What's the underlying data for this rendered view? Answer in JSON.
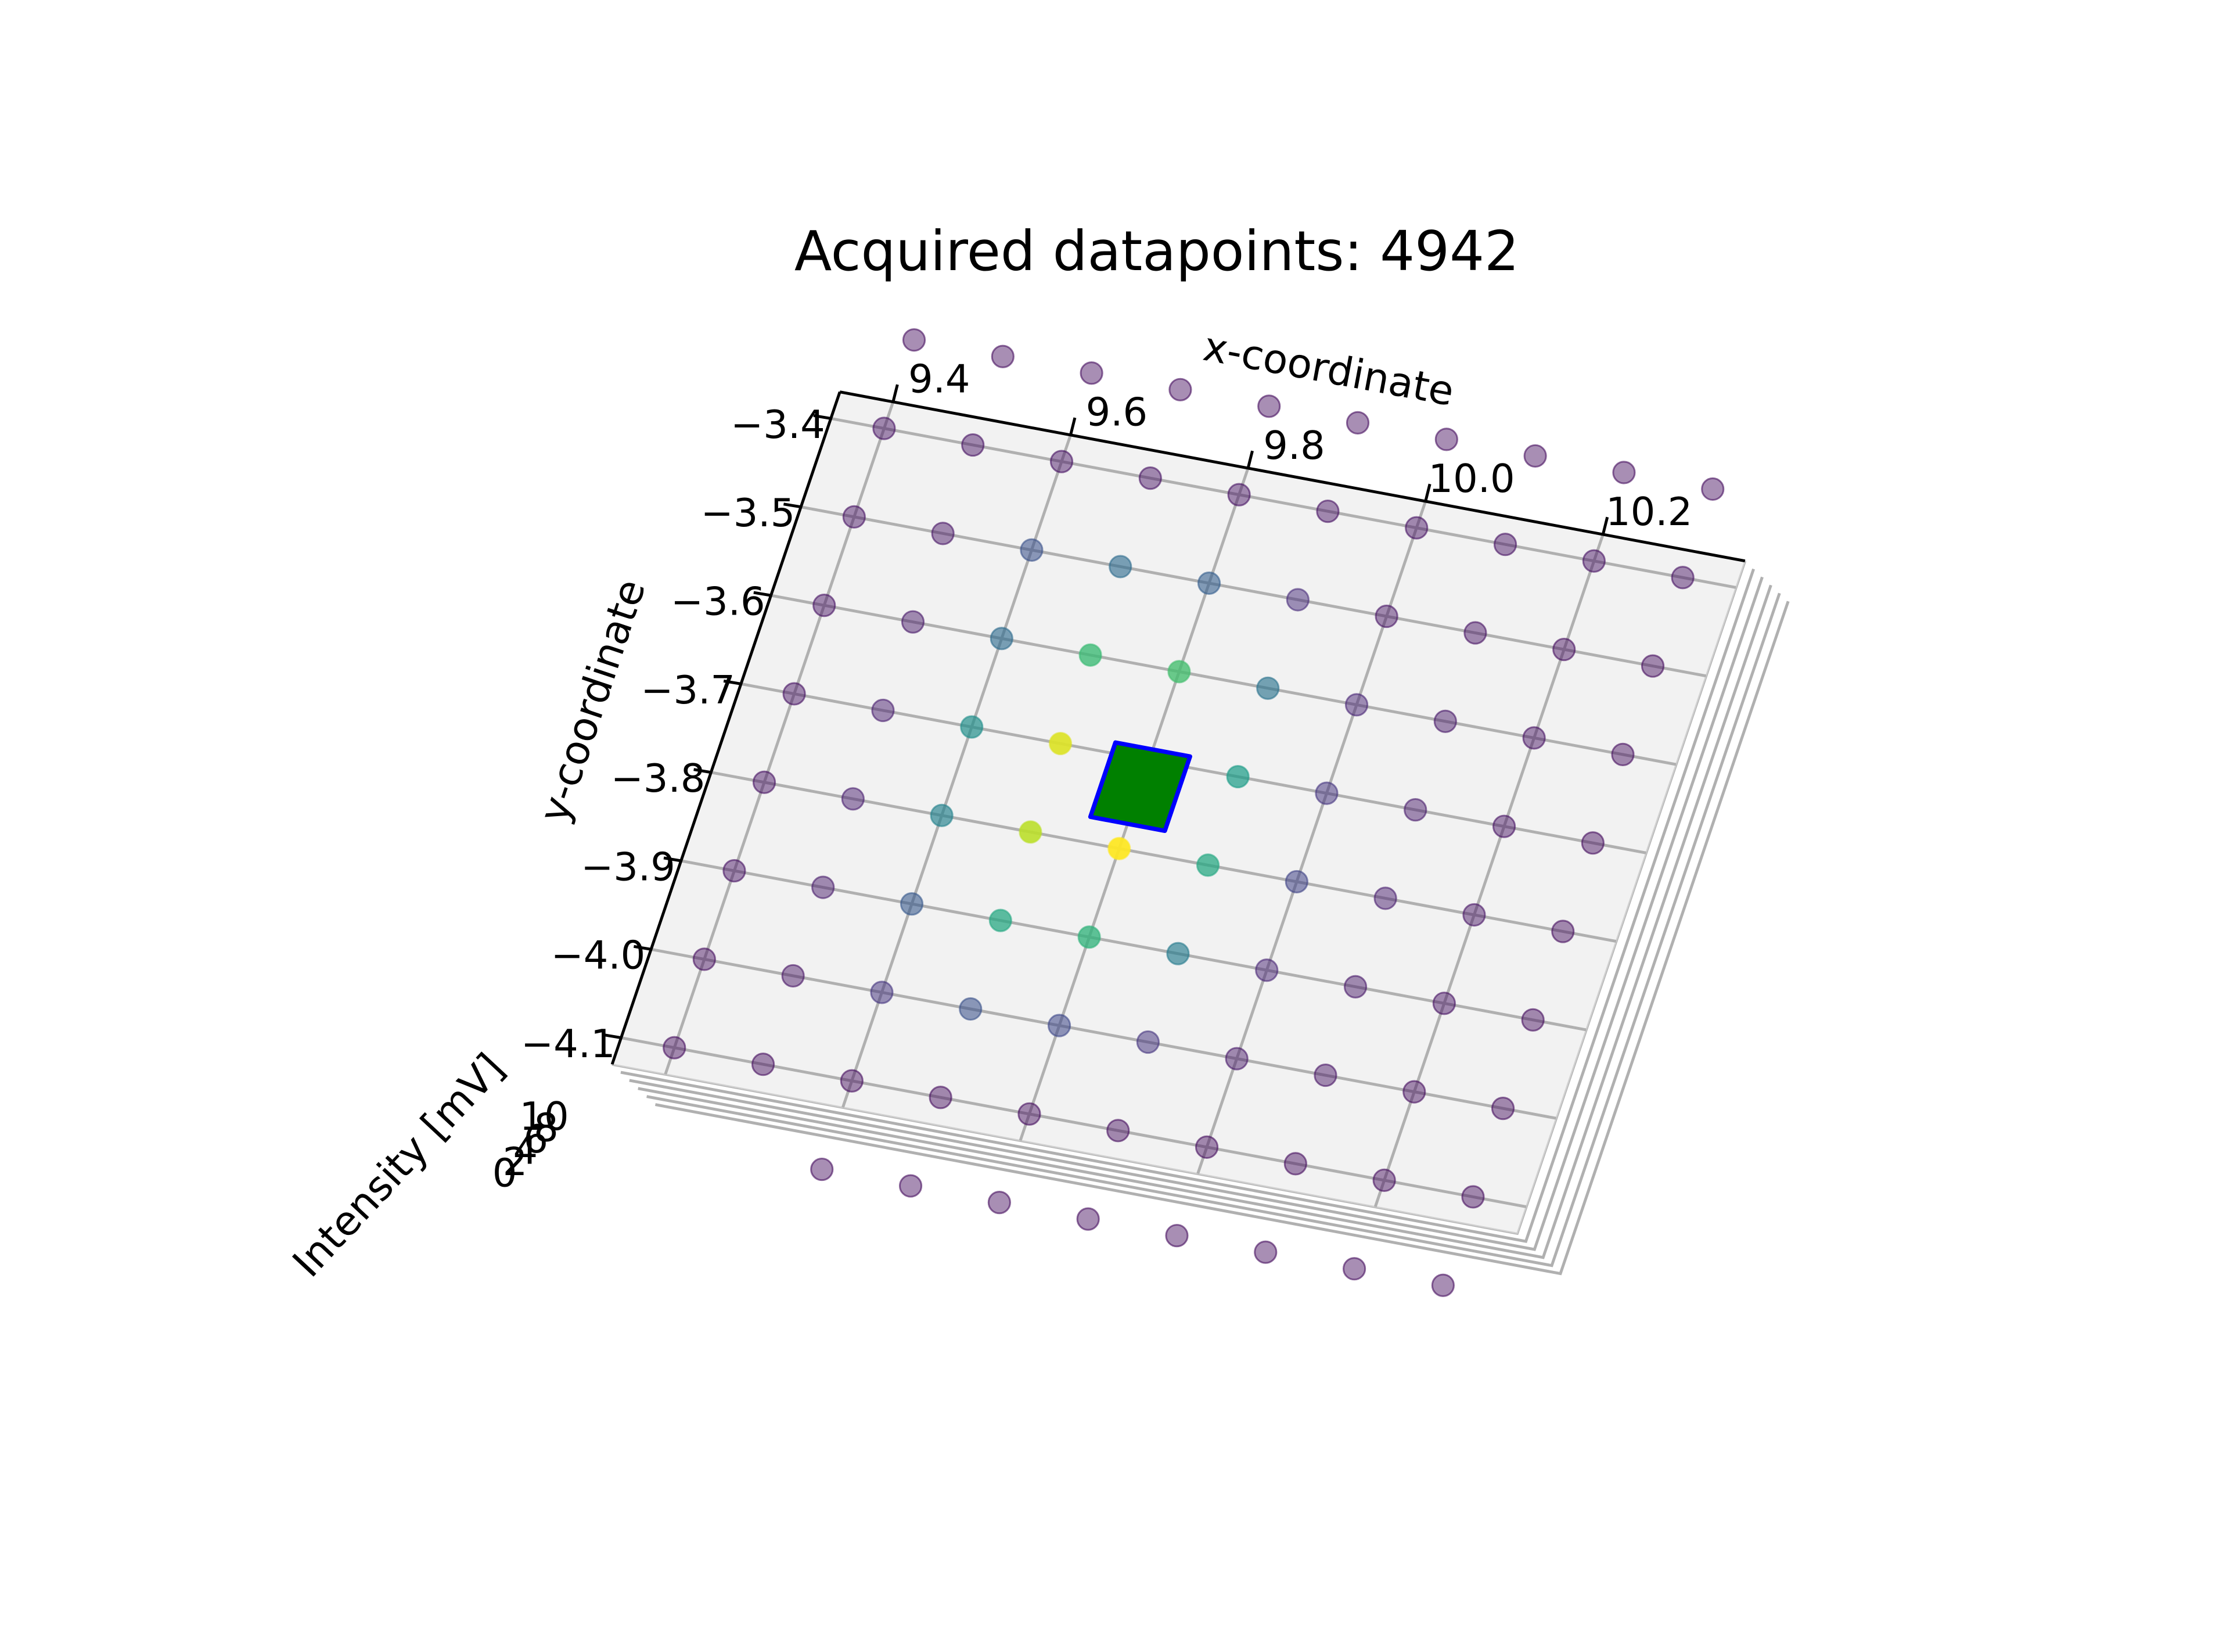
{
  "chart_data": {
    "type": "scatter3d",
    "title": "Acquired datapoints: 4942",
    "xlabel": "x-coordinate",
    "ylabel": "y-coordinate",
    "zlabel": "Intensity [mV]",
    "xlim": [
      9.34,
      10.36
    ],
    "ylim": [
      -4.13,
      -3.37
    ],
    "zlim": [
      0,
      10
    ],
    "xticks": [
      9.4,
      9.6,
      9.8,
      {
        "value": 10,
        "label": "10.0"
      },
      10.2
    ],
    "yticks": [
      {
        "value": -3.4,
        "label": "−3.4"
      },
      {
        "value": -3.5,
        "label": "−3.5"
      },
      {
        "value": -3.6,
        "label": "−3.6"
      },
      {
        "value": -3.7,
        "label": "−3.7"
      },
      {
        "value": -3.8,
        "label": "−3.8"
      },
      {
        "value": -3.9,
        "label": "−3.9"
      },
      {
        "value": -4,
        "label": "−4.0"
      },
      {
        "value": -4.1,
        "label": "−4.1"
      }
    ],
    "zticks": [
      0,
      2,
      4,
      6,
      8,
      10
    ],
    "grid": true,
    "colormap": "viridis",
    "x": [
      9.4,
      9.5,
      9.6,
      9.7,
      9.8,
      9.9,
      10.0,
      10.1,
      10.2,
      10.3,
      9.4,
      9.5,
      9.6,
      9.7,
      9.8,
      9.9,
      10.0,
      10.1,
      10.2,
      10.3,
      9.4,
      9.5,
      9.6,
      9.7,
      9.8,
      9.9,
      10.0,
      10.1,
      10.2,
      10.3,
      9.4,
      9.5,
      9.6,
      9.7,
      9.8,
      9.9,
      10.0,
      10.1,
      10.2,
      10.3,
      9.4,
      9.5,
      9.6,
      9.7,
      9.8,
      9.9,
      10.0,
      10.1,
      10.2,
      10.3,
      9.4,
      9.5,
      9.6,
      9.7,
      9.8,
      9.9,
      10.0,
      10.1,
      10.2,
      10.3,
      9.4,
      9.5,
      9.6,
      9.7,
      9.8,
      9.9,
      10.0,
      10.1,
      10.2,
      10.3,
      9.4,
      9.5,
      9.6,
      9.7,
      9.8,
      9.9,
      10.0,
      10.1,
      10.2,
      10.3,
      9.4,
      9.5,
      9.6,
      9.7,
      9.8,
      9.9,
      10.0,
      10.1,
      10.2,
      10.3,
      9.6,
      9.7,
      9.8,
      9.9,
      10.0,
      10.1,
      10.2,
      10.3
    ],
    "y": [
      -3.3,
      -3.3,
      -3.3,
      -3.3,
      -3.3,
      -3.3,
      -3.3,
      -3.3,
      -3.3,
      -3.3,
      -3.4,
      -3.4,
      -3.4,
      -3.4,
      -3.4,
      -3.4,
      -3.4,
      -3.4,
      -3.4,
      -3.4,
      -3.5,
      -3.5,
      -3.5,
      -3.5,
      -3.5,
      -3.5,
      -3.5,
      -3.5,
      -3.5,
      -3.5,
      -3.6,
      -3.6,
      -3.6,
      -3.6,
      -3.6,
      -3.6,
      -3.6,
      -3.6,
      -3.6,
      -3.6,
      -3.7,
      -3.7,
      -3.7,
      -3.7,
      -3.7,
      -3.7,
      -3.7,
      -3.7,
      -3.7,
      -3.7,
      -3.8,
      -3.8,
      -3.8,
      -3.8,
      -3.8,
      -3.8,
      -3.8,
      -3.8,
      -3.8,
      -3.8,
      -3.9,
      -3.9,
      -3.9,
      -3.9,
      -3.9,
      -3.9,
      -3.9,
      -3.9,
      -3.9,
      -3.9,
      -4.0,
      -4.0,
      -4.0,
      -4.0,
      -4.0,
      -4.0,
      -4.0,
      -4.0,
      -4.0,
      -4.0,
      -4.1,
      -4.1,
      -4.1,
      -4.1,
      -4.1,
      -4.1,
      -4.1,
      -4.1,
      -4.1,
      -4.1,
      -4.2,
      -4.2,
      -4.2,
      -4.2,
      -4.2,
      -4.2,
      -4.2,
      -4.2
    ],
    "z": [
      0.3,
      0.3,
      0.3,
      0.3,
      0.3,
      0.3,
      0.3,
      0.3,
      0.3,
      0.3,
      0.4,
      0.4,
      0.4,
      0.4,
      0.4,
      0.4,
      0.4,
      0.4,
      0.4,
      0.4,
      0.4,
      0.5,
      2.5,
      3.5,
      3.0,
      1.2,
      0.5,
      0.4,
      0.3,
      0.3,
      0.4,
      0.6,
      3.5,
      6.8,
      7.0,
      3.8,
      1.0,
      0.6,
      0.4,
      0.3,
      0.4,
      0.8,
      5.0,
      9.5,
      8.5,
      5.5,
      1.5,
      0.7,
      0.4,
      0.3,
      0.4,
      0.8,
      4.5,
      9.0,
      10.0,
      6.0,
      2.0,
      0.8,
      0.5,
      0.3,
      0.4,
      0.7,
      2.8,
      6.0,
      6.5,
      4.2,
      1.0,
      0.6,
      0.4,
      0.3,
      0.3,
      0.5,
      1.5,
      2.5,
      2.2,
      1.5,
      0.6,
      0.5,
      0.3,
      0.3,
      0.3,
      0.3,
      0.3,
      0.3,
      0.3,
      0.3,
      0.3,
      0.3,
      0.3,
      0.3,
      0.3,
      0.3,
      0.3,
      0.3,
      0.3,
      0.3,
      0.3,
      0.3
    ],
    "marker": {
      "x": 9.8,
      "y": -3.73,
      "color": "#008000",
      "edgecolor": "#0000ff"
    }
  }
}
